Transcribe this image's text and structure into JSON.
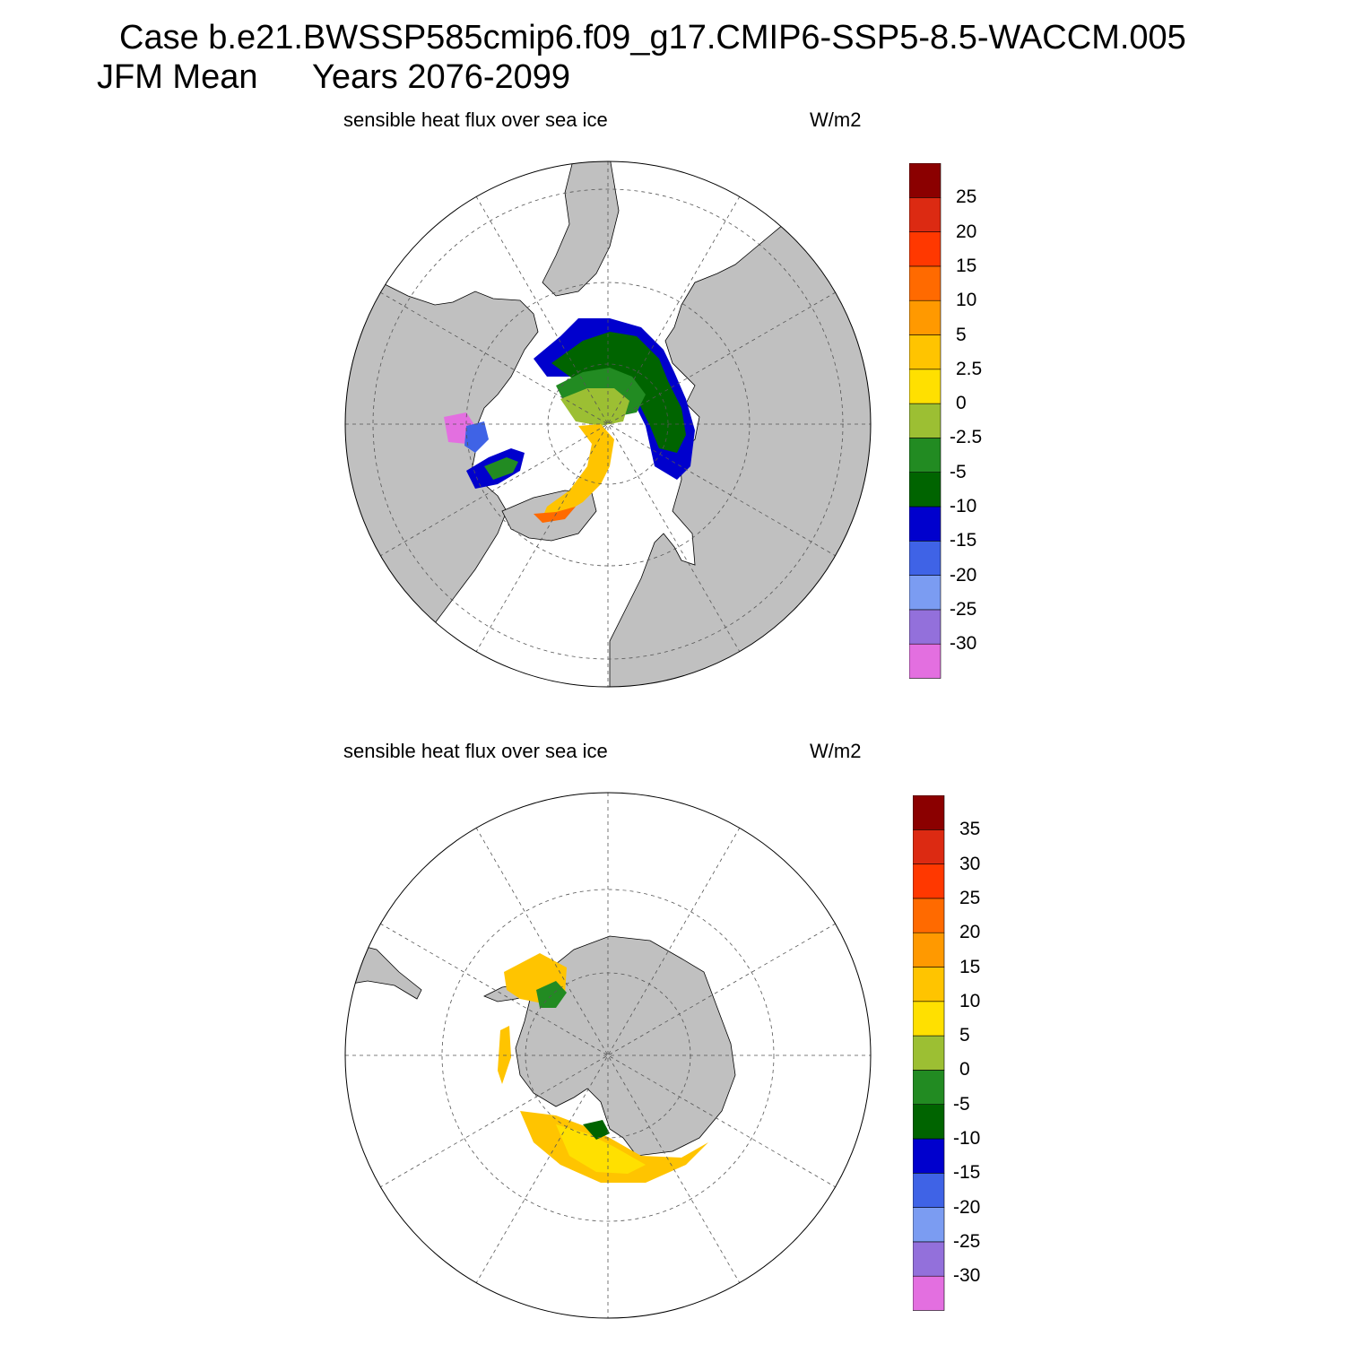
{
  "header": {
    "title_line1": "Case b.e21.BWSSP585cmip6.f09_g17.CMIP6-SSP5-8.5-WACCM.005",
    "title_line2_a": "JFM Mean",
    "title_line2_b": "Years 2076-2099"
  },
  "panels": [
    {
      "hemisphere": "north",
      "variable": "sensible heat flux over sea ice",
      "units": "W/m2",
      "colorbar": {
        "colors": [
          "#e36fe0",
          "#9370db",
          "#7b9cf2",
          "#3f63e6",
          "#0000cd",
          "#006400",
          "#228b22",
          "#9cbf33",
          "#ffe000",
          "#ffc400",
          "#ff9900",
          "#ff6a00",
          "#ff3800",
          "#dc2a12",
          "#8b0000"
        ],
        "labels": [
          "-30",
          "-25",
          "-20",
          "-15",
          "-10",
          "-5",
          "-2.5",
          "0",
          "2.5",
          "5",
          "10",
          "15",
          "20",
          "25"
        ]
      }
    },
    {
      "hemisphere": "south",
      "variable": "sensible heat flux over sea ice",
      "units": "W/m2",
      "colorbar": {
        "colors": [
          "#e36fe0",
          "#9370db",
          "#7b9cf2",
          "#3f63e6",
          "#0000cd",
          "#006400",
          "#228b22",
          "#9cbf33",
          "#ffe000",
          "#ffc400",
          "#ff9900",
          "#ff6a00",
          "#ff3800",
          "#dc2a12",
          "#8b0000"
        ],
        "labels": [
          "-30",
          "-25",
          "-20",
          "-15",
          "-10",
          "-5",
          "0",
          "5",
          "10",
          "15",
          "20",
          "25",
          "30",
          "35"
        ]
      }
    }
  ],
  "style": {
    "land_color": "#c0c0c0",
    "grid": "dashed"
  }
}
